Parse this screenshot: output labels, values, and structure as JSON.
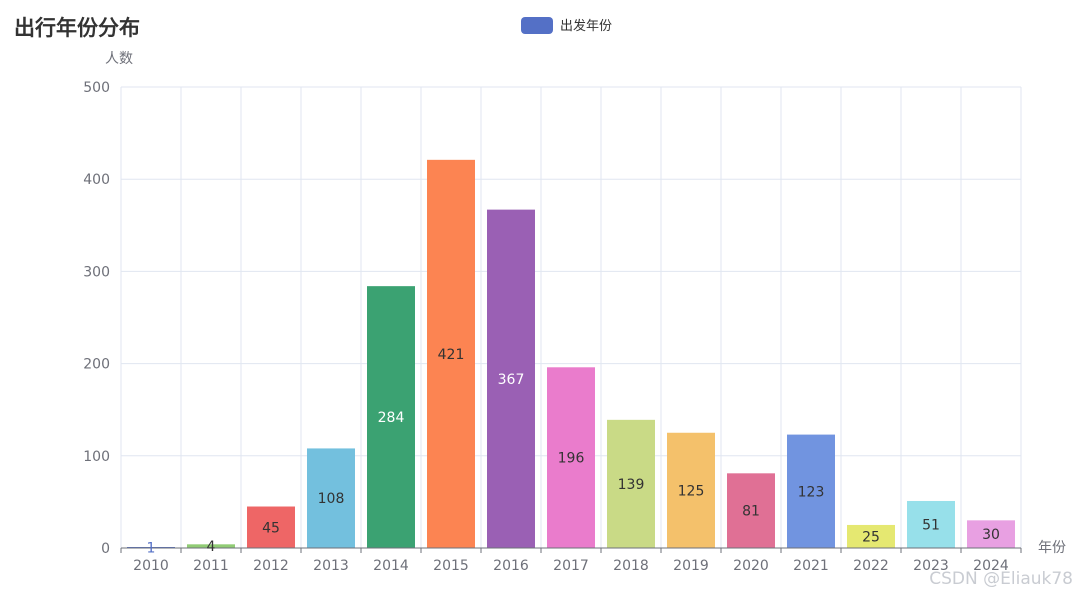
{
  "chart_data": {
    "type": "bar",
    "title": "出行年份分布",
    "xlabel": "年份",
    "ylabel": "人数",
    "categories": [
      "2010",
      "2011",
      "2012",
      "2013",
      "2014",
      "2015",
      "2016",
      "2017",
      "2018",
      "2019",
      "2020",
      "2021",
      "2022",
      "2023",
      "2024"
    ],
    "series": [
      {
        "name": "出发年份",
        "values": [
          1,
          4,
          45,
          108,
          284,
          421,
          367,
          196,
          139,
          125,
          81,
          123,
          25,
          51,
          30
        ]
      }
    ],
    "ylim": [
      0,
      500
    ],
    "yticks": [
      0,
      100,
      200,
      300,
      400,
      500
    ],
    "grid": true,
    "legend_position": "top-center",
    "legend_color": "#5470c6",
    "bar_colors": [
      "#5470c6",
      "#91cc75",
      "#ee6666",
      "#73c0de",
      "#3ba272",
      "#fc8452",
      "#9a60b4",
      "#ea7ccc",
      "#c9da86",
      "#f4c16b",
      "#e07095",
      "#7194e0",
      "#e5e871",
      "#97e0ea",
      "#e8a0e2"
    ],
    "label_colors": [
      "#5470c6",
      "#333333",
      "#333333",
      "#333333",
      "#ffffff",
      "#333333",
      "#ffffff",
      "#333333",
      "#333333",
      "#333333",
      "#333333",
      "#333333",
      "#333333",
      "#333333",
      "#333333"
    ]
  },
  "watermark": "CSDN @Eliauk78"
}
